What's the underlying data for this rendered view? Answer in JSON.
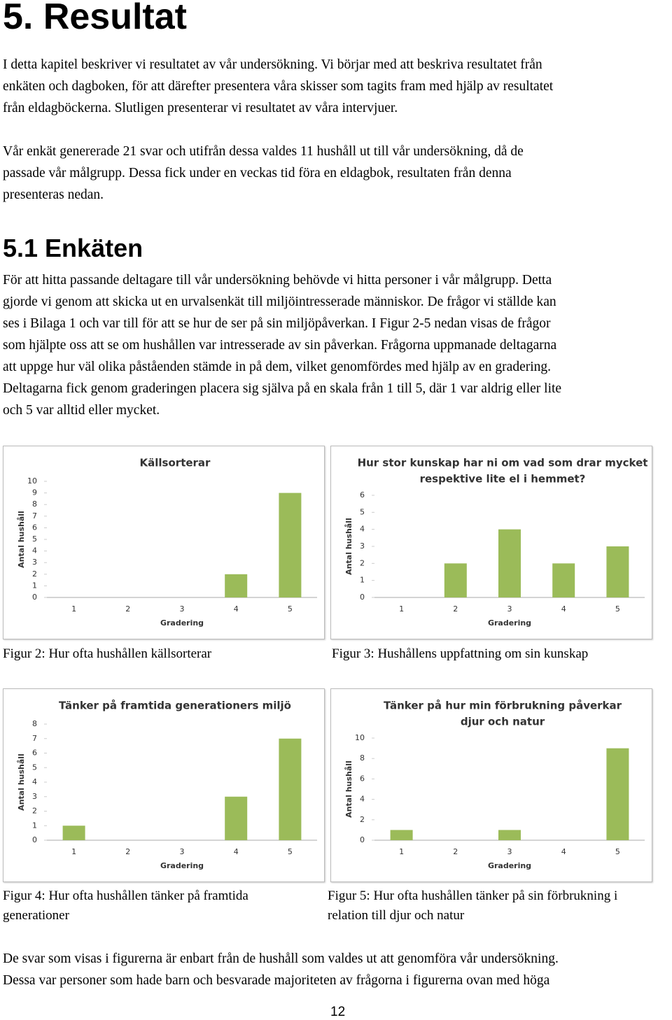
{
  "heading": "5. Resultat",
  "paragraphs": [
    [
      "I detta kapitel beskriver vi resultatet av vår undersökning. Vi börjar med att beskriva resultatet från",
      "enkäten och dagboken, för att därefter presentera våra skisser som tagits fram med hjälp av resultatet",
      "från eldagböckerna. Slutligen presenterar vi resultatet av våra intervjuer."
    ],
    [
      "Vår enkät genererade 21 svar och utifrån dessa valdes 11 hushåll ut till vår undersökning, då de",
      "passade vår målgrupp. Dessa fick under en veckas tid föra en eldagbok, resultaten från denna",
      "presenteras nedan."
    ]
  ],
  "subheading": "5.1 Enkäten",
  "section_paragraph": [
    "För att hitta passande deltagare till vår undersökning behövde vi hitta personer i vår målgrupp. Detta",
    "gjorde vi genom att skicka ut en urvalsenkät till miljöintresserade människor. De frågor vi ställde kan",
    "ses i Bilaga 1 och var till för att se hur de ser på sin miljöpåverkan. I Figur 2-5  nedan visas de frågor",
    "som hjälpte oss att se om hushållen var intresserade av sin påverkan. Frågorna uppmanade deltagarna",
    "att uppge hur väl olika påståenden stämde in på dem, vilket genomfördes med hjälp av en gradering.",
    "Deltagarna fick genom graderingen placera sig själva på en skala från 1 till 5, där 1 var aldrig eller lite",
    "och 5 var alltid eller mycket."
  ],
  "chart_data": [
    {
      "type": "bar",
      "title": [
        "Källsorterar"
      ],
      "categories": [
        "1",
        "2",
        "3",
        "4",
        "5"
      ],
      "values": [
        0,
        0,
        0,
        2,
        9
      ],
      "color": "#9bbb59",
      "ylim": [
        0,
        10
      ],
      "yticks": [
        0,
        1,
        2,
        3,
        4,
        5,
        6,
        7,
        8,
        9,
        10
      ],
      "xlabel": "Gradering",
      "ylabel": "Antal hushåll",
      "grid": false
    },
    {
      "type": "bar",
      "title": [
        "Hur stor kunskap har ni om vad som drar mycket",
        "respektive lite el i hemmet?"
      ],
      "categories": [
        "1",
        "2",
        "3",
        "4",
        "5"
      ],
      "values": [
        0,
        2,
        4,
        2,
        3
      ],
      "color": "#9bbb59",
      "ylim": [
        0,
        6
      ],
      "yticks": [
        0,
        1,
        2,
        3,
        4,
        5,
        6
      ],
      "xlabel": "Gradering",
      "ylabel": "Antal hushåll",
      "grid": false
    },
    {
      "type": "bar",
      "title": [
        "Tänker på framtida generationers miljö"
      ],
      "categories": [
        "1",
        "2",
        "3",
        "4",
        "5"
      ],
      "values": [
        1,
        0,
        0,
        3,
        7
      ],
      "color": "#9bbb59",
      "ylim": [
        0,
        8
      ],
      "yticks": [
        0,
        1,
        2,
        3,
        4,
        5,
        6,
        7,
        8
      ],
      "xlabel": "Gradering",
      "ylabel": "Antal hushåll",
      "grid": false
    },
    {
      "type": "bar",
      "title": [
        "Tänker på hur min förbrukning påverkar",
        "djur och natur"
      ],
      "categories": [
        "1",
        "2",
        "3",
        "4",
        "5"
      ],
      "values": [
        1,
        0,
        1,
        0,
        9
      ],
      "color": "#9bbb59",
      "ylim": [
        0,
        10
      ],
      "yticks": [
        0,
        2,
        4,
        6,
        8,
        10
      ],
      "xlabel": "Gradering",
      "ylabel": "Antal hushåll",
      "grid": false
    }
  ],
  "captions": [
    [
      "Figur 2: Hur ofta hushållen källsorterar"
    ],
    [
      "Figur 3: Hushållens uppfattning om sin kunskap"
    ],
    [
      "Figur 4: Hur ofta hushållen tänker på framtida",
      "generationer"
    ],
    [
      "Figur 5: Hur ofta hushållen tänker på sin förbrukning i",
      "relation till djur och natur"
    ]
  ],
  "closing_paragraph": [
    "De svar som visas i figurerna är enbart från de hushåll som valdes ut att genomföra vår undersökning.",
    "Dessa var personer som hade barn och besvarade majoriteten av frågorna i figurerna ovan med höga"
  ],
  "page_number": "12"
}
